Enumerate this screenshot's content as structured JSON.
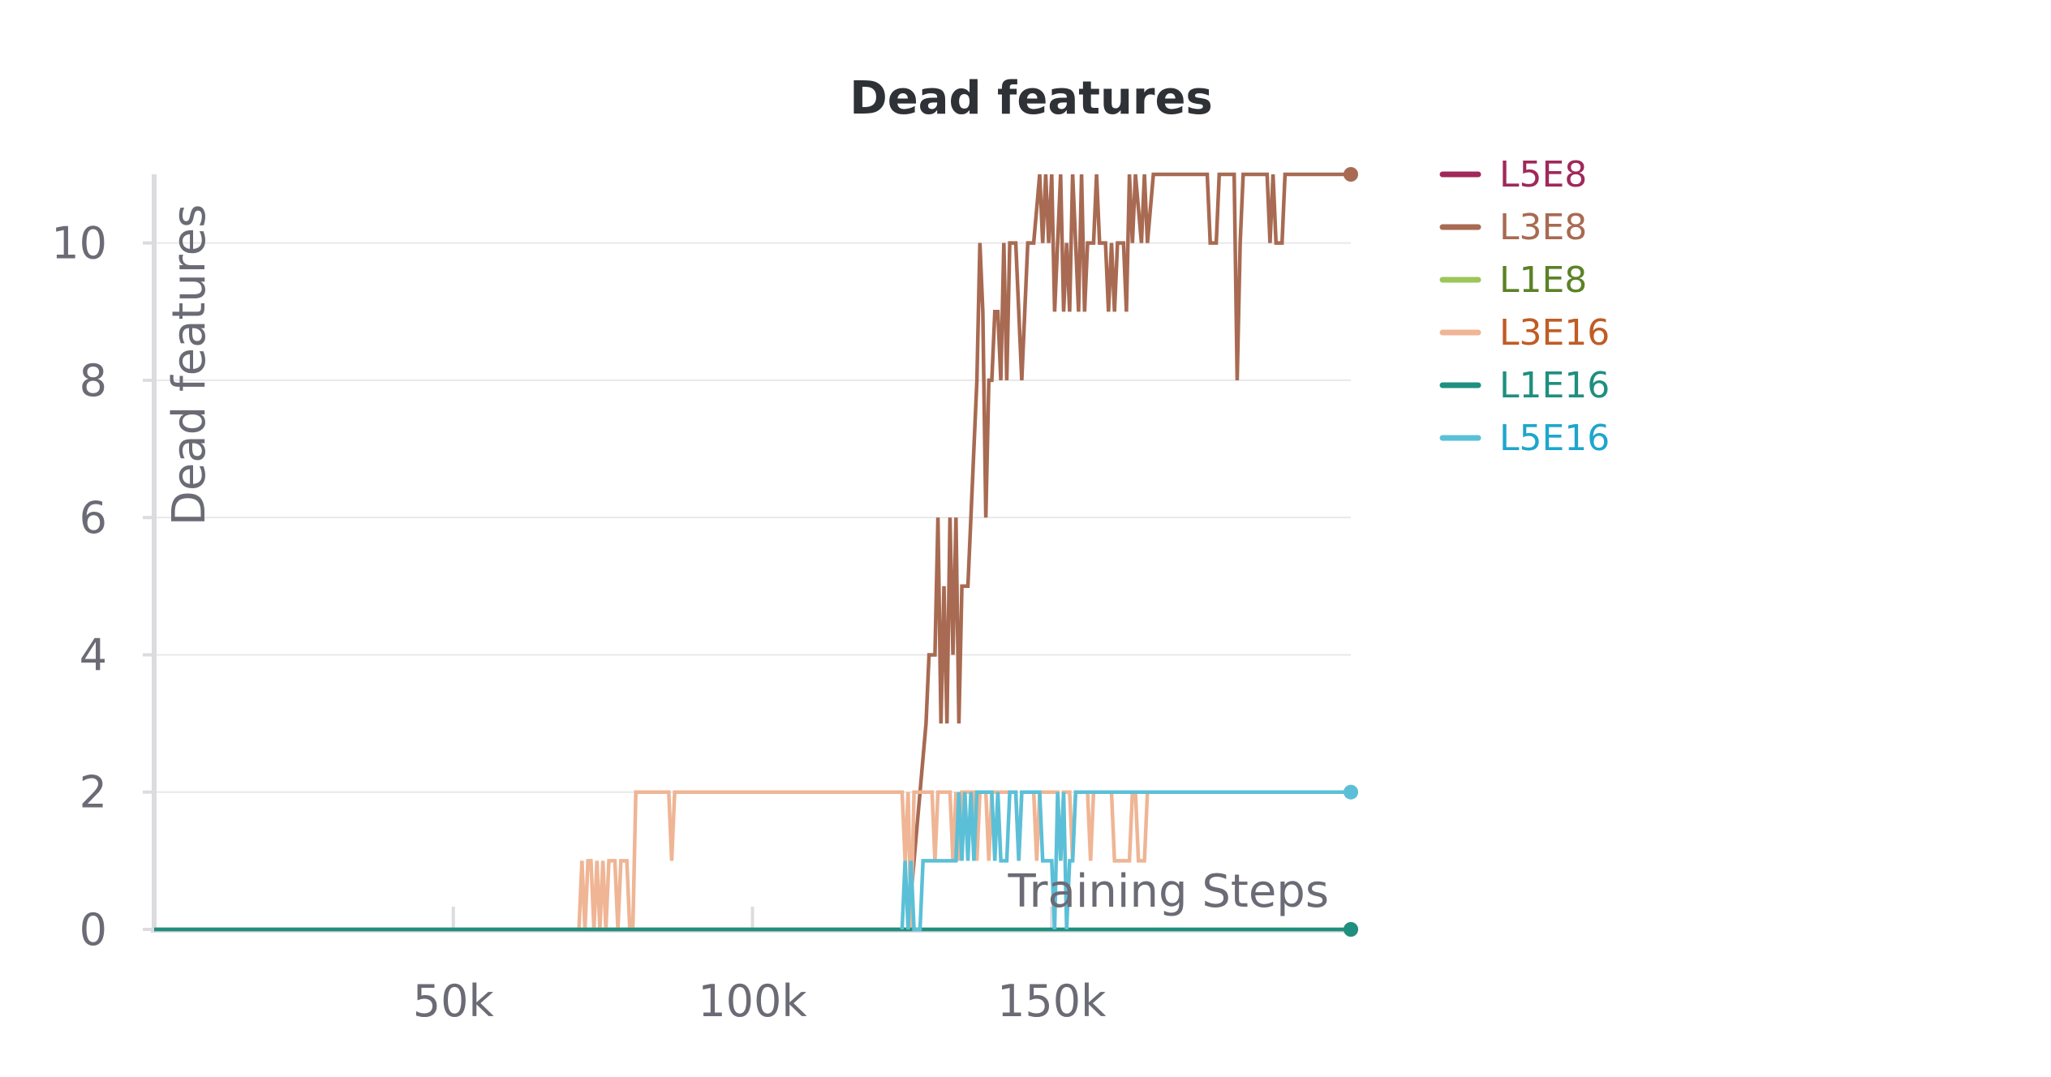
{
  "chart_data": {
    "type": "line",
    "title": "Dead features",
    "xlabel": "Training Steps",
    "ylabel": "Dead features",
    "xlim": [
      0,
      200000
    ],
    "ylim": [
      0,
      11
    ],
    "x_ticks": [
      50000,
      100000,
      150000
    ],
    "x_tick_labels": [
      "50k",
      "100k",
      "150k"
    ],
    "y_ticks": [
      0,
      2,
      4,
      6,
      8,
      10
    ],
    "y_tick_labels": [
      "0",
      "2",
      "4",
      "6",
      "8",
      "10"
    ],
    "grid": true,
    "legend_position": "right",
    "series": [
      {
        "name": "L5E8",
        "color": "#a0285a",
        "label_color": "#a0285a",
        "points": []
      },
      {
        "name": "L3E8",
        "color": "#a86a52",
        "label_color": "#a86a52",
        "points": [
          [
            0,
            0
          ],
          [
            126000,
            0
          ],
          [
            127000,
            1
          ],
          [
            128000,
            2
          ],
          [
            129000,
            3
          ],
          [
            129500,
            4
          ],
          [
            130500,
            4
          ],
          [
            131000,
            6
          ],
          [
            131500,
            3
          ],
          [
            132000,
            5
          ],
          [
            132500,
            3
          ],
          [
            133000,
            6
          ],
          [
            133500,
            4
          ],
          [
            134000,
            6
          ],
          [
            134500,
            3
          ],
          [
            135000,
            5
          ],
          [
            136000,
            5
          ],
          [
            136500,
            6
          ],
          [
            137000,
            7
          ],
          [
            137500,
            8
          ],
          [
            138000,
            10
          ],
          [
            138500,
            9
          ],
          [
            139000,
            6
          ],
          [
            139500,
            8
          ],
          [
            140000,
            8
          ],
          [
            140500,
            9
          ],
          [
            141000,
            9
          ],
          [
            141500,
            8
          ],
          [
            142000,
            10
          ],
          [
            142500,
            8
          ],
          [
            143000,
            10
          ],
          [
            144000,
            10
          ],
          [
            144500,
            9
          ],
          [
            145000,
            8
          ],
          [
            145500,
            9
          ],
          [
            146000,
            10
          ],
          [
            147000,
            10
          ],
          [
            148000,
            11
          ],
          [
            148500,
            10
          ],
          [
            149000,
            11
          ],
          [
            149500,
            10
          ],
          [
            150000,
            11
          ],
          [
            150500,
            9
          ],
          [
            151000,
            10
          ],
          [
            151500,
            11
          ],
          [
            152000,
            9
          ],
          [
            152500,
            10
          ],
          [
            153000,
            9
          ],
          [
            153500,
            11
          ],
          [
            154000,
            10
          ],
          [
            154500,
            9
          ],
          [
            155000,
            11
          ],
          [
            155500,
            9
          ],
          [
            156000,
            10
          ],
          [
            157000,
            10
          ],
          [
            157500,
            11
          ],
          [
            158000,
            10
          ],
          [
            159000,
            10
          ],
          [
            159500,
            9
          ],
          [
            160000,
            10
          ],
          [
            160500,
            9
          ],
          [
            161000,
            10
          ],
          [
            162000,
            10
          ],
          [
            162500,
            9
          ],
          [
            163000,
            11
          ],
          [
            163500,
            10
          ],
          [
            164000,
            11
          ],
          [
            165000,
            10
          ],
          [
            165500,
            11
          ],
          [
            166000,
            10
          ],
          [
            167000,
            11
          ],
          [
            176000,
            11
          ],
          [
            176500,
            10
          ],
          [
            177500,
            10
          ],
          [
            178000,
            11
          ],
          [
            180500,
            11
          ],
          [
            181000,
            8
          ],
          [
            181500,
            10
          ],
          [
            182000,
            11
          ],
          [
            186000,
            11
          ],
          [
            186500,
            10
          ],
          [
            187000,
            11
          ],
          [
            187500,
            10
          ],
          [
            188500,
            10
          ],
          [
            189000,
            11
          ],
          [
            200000,
            11
          ]
        ]
      },
      {
        "name": "L1E8",
        "color": "#9cc55a",
        "label_color": "#5b8226",
        "points": [
          [
            0,
            0
          ],
          [
            200000,
            0
          ]
        ]
      },
      {
        "name": "L3E16",
        "color": "#efb595",
        "label_color": "#c05c24",
        "points": [
          [
            0,
            0
          ],
          [
            71000,
            0
          ],
          [
            71500,
            1
          ],
          [
            72000,
            0
          ],
          [
            72500,
            1
          ],
          [
            73000,
            1
          ],
          [
            73500,
            0
          ],
          [
            74000,
            1
          ],
          [
            74500,
            0
          ],
          [
            75000,
            1
          ],
          [
            75500,
            0
          ],
          [
            76000,
            1
          ],
          [
            77000,
            1
          ],
          [
            77500,
            0
          ],
          [
            78000,
            1
          ],
          [
            79000,
            1
          ],
          [
            79500,
            0
          ],
          [
            80000,
            0
          ],
          [
            80500,
            2
          ],
          [
            86000,
            2
          ],
          [
            86500,
            1
          ],
          [
            87000,
            2
          ],
          [
            125000,
            2
          ],
          [
            125500,
            1
          ],
          [
            126000,
            2
          ],
          [
            126500,
            0
          ],
          [
            127000,
            2
          ],
          [
            130000,
            2
          ],
          [
            130500,
            1
          ],
          [
            131000,
            2
          ],
          [
            133000,
            2
          ],
          [
            133500,
            1
          ],
          [
            134000,
            2
          ],
          [
            134500,
            1
          ],
          [
            135000,
            2
          ],
          [
            137000,
            2
          ],
          [
            137500,
            1
          ],
          [
            138000,
            2
          ],
          [
            139000,
            2
          ],
          [
            139500,
            1
          ],
          [
            140000,
            2
          ],
          [
            144000,
            2
          ],
          [
            144500,
            1
          ],
          [
            145000,
            2
          ],
          [
            147000,
            2
          ],
          [
            147500,
            1
          ],
          [
            148000,
            2
          ],
          [
            151000,
            2
          ],
          [
            151500,
            1
          ],
          [
            152000,
            2
          ],
          [
            153000,
            2
          ],
          [
            153500,
            1
          ],
          [
            154000,
            2
          ],
          [
            156000,
            2
          ],
          [
            156500,
            1
          ],
          [
            157000,
            2
          ],
          [
            160000,
            2
          ],
          [
            160500,
            1
          ],
          [
            163000,
            1
          ],
          [
            163500,
            2
          ],
          [
            164000,
            2
          ],
          [
            164500,
            1
          ],
          [
            165500,
            1
          ],
          [
            166000,
            2
          ],
          [
            200000,
            2
          ]
        ]
      },
      {
        "name": "L1E16",
        "color": "#1f8f7f",
        "label_color": "#1f8f7f",
        "points": [
          [
            0,
            0
          ],
          [
            200000,
            0
          ]
        ]
      },
      {
        "name": "L5E16",
        "color": "#5bc0d7",
        "label_color": "#1ea6cc",
        "points": [
          [
            125000,
            0
          ],
          [
            125500,
            1
          ],
          [
            126000,
            0
          ],
          [
            126500,
            1
          ],
          [
            127000,
            0
          ],
          [
            128000,
            0
          ],
          [
            128500,
            1
          ],
          [
            134000,
            1
          ],
          [
            134500,
            2
          ],
          [
            135000,
            1
          ],
          [
            135500,
            2
          ],
          [
            136000,
            1
          ],
          [
            136500,
            2
          ],
          [
            137000,
            1
          ],
          [
            137500,
            2
          ],
          [
            140000,
            2
          ],
          [
            140500,
            1
          ],
          [
            141000,
            2
          ],
          [
            141500,
            1
          ],
          [
            142500,
            1
          ],
          [
            143000,
            2
          ],
          [
            144000,
            2
          ],
          [
            144500,
            1
          ],
          [
            145000,
            2
          ],
          [
            148000,
            2
          ],
          [
            148500,
            1
          ],
          [
            150000,
            1
          ],
          [
            150500,
            0
          ],
          [
            151000,
            2
          ],
          [
            151500,
            1
          ],
          [
            152000,
            2
          ],
          [
            152500,
            0
          ],
          [
            153000,
            1
          ],
          [
            153500,
            1
          ],
          [
            154000,
            2
          ],
          [
            200000,
            2
          ]
        ]
      }
    ]
  }
}
